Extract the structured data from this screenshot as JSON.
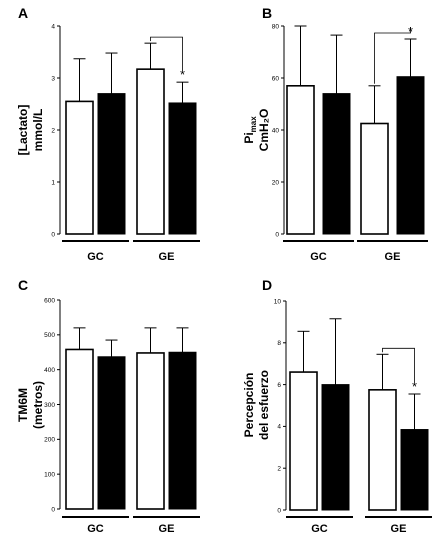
{
  "chart_data": [
    {
      "type": "bar",
      "panel": "A",
      "ylabel_lines": [
        "[Lactato]",
        "mmol/L"
      ],
      "ylim": [
        0,
        4
      ],
      "yticks": [
        0,
        1,
        2,
        3,
        4
      ],
      "groups": [
        "GC",
        "GE"
      ],
      "bars": [
        {
          "group": "GC",
          "fill": "white",
          "value": 2.55,
          "error": 0.82
        },
        {
          "group": "GC",
          "fill": "black",
          "value": 2.7,
          "error": 0.78
        },
        {
          "group": "GE",
          "fill": "white",
          "value": 3.17,
          "error": 0.5
        },
        {
          "group": "GE",
          "fill": "black",
          "value": 2.52,
          "error": 0.4
        }
      ],
      "significance": {
        "from": 2,
        "to": 3,
        "mark": "*"
      }
    },
    {
      "type": "bar",
      "panel": "B",
      "ylabel_main": "Pi",
      "ylabel_sub": "max",
      "ylabel_line2": "CmH₂O",
      "ylim": [
        0,
        80
      ],
      "yticks": [
        0,
        20,
        40,
        60,
        80
      ],
      "groups": [
        "GC",
        "GE"
      ],
      "bars": [
        {
          "group": "GC",
          "fill": "white",
          "value": 57,
          "error": 23
        },
        {
          "group": "GC",
          "fill": "black",
          "value": 54,
          "error": 22.5
        },
        {
          "group": "GE",
          "fill": "white",
          "value": 42.5,
          "error": 14.5
        },
        {
          "group": "GE",
          "fill": "black",
          "value": 60.5,
          "error": 14.5
        }
      ],
      "significance": {
        "from": 2,
        "to": 3,
        "mark": "*"
      }
    },
    {
      "type": "bar",
      "panel": "C",
      "ylabel_lines": [
        "TM6M",
        "(metros)"
      ],
      "ylim": [
        0,
        600
      ],
      "yticks": [
        0,
        100,
        200,
        300,
        400,
        500,
        600
      ],
      "groups": [
        "GC",
        "GE"
      ],
      "bars": [
        {
          "group": "GC",
          "fill": "white",
          "value": 458,
          "error": 62
        },
        {
          "group": "GC",
          "fill": "black",
          "value": 437,
          "error": 48
        },
        {
          "group": "GE",
          "fill": "white",
          "value": 448,
          "error": 72
        },
        {
          "group": "GE",
          "fill": "black",
          "value": 450,
          "error": 70
        }
      ],
      "significance": null
    },
    {
      "type": "bar",
      "panel": "D",
      "ylabel_lines": [
        "Percepción",
        "del esfuerzo"
      ],
      "ylim": [
        0,
        10
      ],
      "yticks": [
        0,
        2,
        4,
        6,
        8,
        10
      ],
      "groups": [
        "GC",
        "GE"
      ],
      "bars": [
        {
          "group": "GC",
          "fill": "white",
          "value": 6.6,
          "error": 1.95
        },
        {
          "group": "GC",
          "fill": "black",
          "value": 6.0,
          "error": 3.15
        },
        {
          "group": "GE",
          "fill": "white",
          "value": 5.75,
          "error": 1.7
        },
        {
          "group": "GE",
          "fill": "black",
          "value": 3.85,
          "error": 1.7
        }
      ],
      "significance": {
        "from": 2,
        "to": 3,
        "mark": "*"
      }
    }
  ]
}
